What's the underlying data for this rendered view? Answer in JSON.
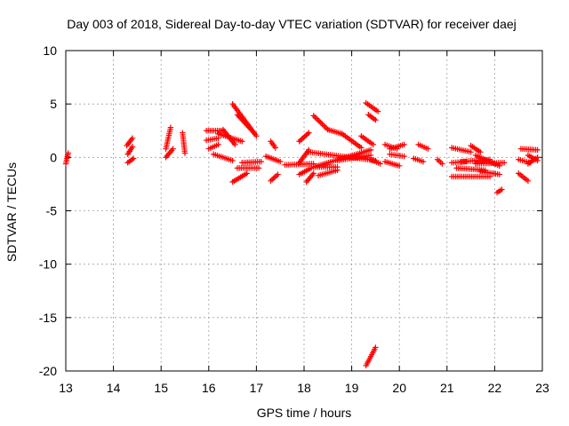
{
  "chart_data": {
    "type": "scatter",
    "title": "Day 003 of 2018, Sidereal Day-to-day VTEC variation (SDTVAR) for receiver daej",
    "xlabel": "GPS time / hours",
    "ylabel": "SDTVAR / TECUs",
    "xlim": [
      13,
      23
    ],
    "ylim": [
      -20,
      10
    ],
    "xticks": [
      13,
      14,
      15,
      16,
      17,
      18,
      19,
      20,
      21,
      22,
      23
    ],
    "yticks": [
      -20,
      -15,
      -10,
      -5,
      0,
      5,
      10
    ],
    "grid": true,
    "marker": "+",
    "color": "#ff0000",
    "segments": [
      [
        [
          13.0,
          -0.6
        ],
        [
          13.05,
          0.4
        ]
      ],
      [
        [
          14.28,
          1.1
        ],
        [
          14.4,
          1.8
        ]
      ],
      [
        [
          14.3,
          0.3
        ],
        [
          14.4,
          1.0
        ]
      ],
      [
        [
          14.3,
          -0.5
        ],
        [
          14.42,
          -0.1
        ]
      ],
      [
        [
          15.1,
          0.8
        ],
        [
          15.2,
          2.8
        ]
      ],
      [
        [
          15.1,
          0.0
        ],
        [
          15.25,
          0.8
        ]
      ],
      [
        [
          15.45,
          2.3
        ],
        [
          15.5,
          0.4
        ]
      ],
      [
        [
          15.95,
          2.5
        ],
        [
          16.3,
          2.5
        ]
      ],
      [
        [
          15.95,
          1.6
        ],
        [
          16.2,
          1.8
        ]
      ],
      [
        [
          16.0,
          0.8
        ],
        [
          16.2,
          1.2
        ]
      ],
      [
        [
          16.1,
          0.3
        ],
        [
          16.5,
          -0.3
        ]
      ],
      [
        [
          16.2,
          2.2
        ],
        [
          16.7,
          1.5
        ]
      ],
      [
        [
          16.3,
          2.6
        ],
        [
          16.55,
          1.2
        ]
      ],
      [
        [
          16.5,
          5.0
        ],
        [
          17.0,
          2.0
        ]
      ],
      [
        [
          16.6,
          4.0
        ],
        [
          16.95,
          2.3
        ]
      ],
      [
        [
          16.5,
          -2.3
        ],
        [
          16.8,
          -1.5
        ]
      ],
      [
        [
          16.6,
          -1.0
        ],
        [
          17.05,
          -1.0
        ]
      ],
      [
        [
          16.7,
          -0.5
        ],
        [
          17.1,
          -0.4
        ]
      ],
      [
        [
          17.2,
          0.1
        ],
        [
          17.5,
          -0.4
        ]
      ],
      [
        [
          17.3,
          1.5
        ],
        [
          17.4,
          0.9
        ]
      ],
      [
        [
          17.3,
          -2.2
        ],
        [
          17.45,
          -1.6
        ]
      ],
      [
        [
          17.6,
          -0.7
        ],
        [
          18.2,
          -0.6
        ]
      ],
      [
        [
          17.9,
          1.5
        ],
        [
          18.1,
          2.3
        ]
      ],
      [
        [
          17.9,
          -0.5
        ],
        [
          18.1,
          0.7
        ]
      ],
      [
        [
          17.9,
          -1.6
        ],
        [
          18.15,
          -1.0
        ]
      ],
      [
        [
          18.05,
          -2.3
        ],
        [
          18.2,
          -1.5
        ]
      ],
      [
        [
          18.1,
          0.5
        ],
        [
          19.5,
          -0.3
        ]
      ],
      [
        [
          18.2,
          -0.9
        ],
        [
          19.4,
          0.7
        ]
      ],
      [
        [
          18.2,
          -0.9
        ],
        [
          18.7,
          -0.9
        ]
      ],
      [
        [
          18.2,
          3.9
        ],
        [
          18.5,
          2.6
        ]
      ],
      [
        [
          18.5,
          2.6
        ],
        [
          18.8,
          2.2
        ]
      ],
      [
        [
          18.8,
          2.2
        ],
        [
          19.2,
          0.9
        ]
      ],
      [
        [
          18.3,
          -1.7
        ],
        [
          18.7,
          -1.2
        ]
      ],
      [
        [
          18.7,
          -0.3
        ],
        [
          19.4,
          0.2
        ]
      ],
      [
        [
          19.3,
          5.1
        ],
        [
          19.55,
          4.3
        ]
      ],
      [
        [
          19.35,
          4.0
        ],
        [
          19.5,
          3.5
        ]
      ],
      [
        [
          19.2,
          2.0
        ],
        [
          19.45,
          1.2
        ]
      ],
      [
        [
          19.4,
          -0.2
        ],
        [
          19.6,
          -0.6
        ]
      ],
      [
        [
          19.3,
          -19.5
        ],
        [
          19.5,
          -17.8
        ]
      ],
      [
        [
          19.7,
          1.2
        ],
        [
          19.95,
          0.8
        ]
      ],
      [
        [
          19.8,
          0.8
        ],
        [
          20.1,
          1.2
        ]
      ],
      [
        [
          19.7,
          -0.4
        ],
        [
          20.0,
          -0.8
        ]
      ],
      [
        [
          19.8,
          0.3
        ],
        [
          20.1,
          0.1
        ]
      ],
      [
        [
          20.3,
          -0.1
        ],
        [
          20.5,
          -0.4
        ]
      ],
      [
        [
          20.4,
          1.2
        ],
        [
          20.6,
          0.8
        ]
      ],
      [
        [
          20.8,
          -0.2
        ],
        [
          20.9,
          -0.6
        ]
      ],
      [
        [
          21.1,
          -0.5
        ],
        [
          21.4,
          -0.4
        ]
      ],
      [
        [
          21.1,
          0.9
        ],
        [
          21.5,
          0.5
        ]
      ],
      [
        [
          21.1,
          -1.8
        ],
        [
          21.9,
          -1.8
        ]
      ],
      [
        [
          21.2,
          -1.0
        ],
        [
          21.8,
          -1.2
        ]
      ],
      [
        [
          21.3,
          -0.4
        ],
        [
          21.9,
          -0.2
        ]
      ],
      [
        [
          21.5,
          1.1
        ],
        [
          21.7,
          0.5
        ]
      ],
      [
        [
          21.6,
          -0.6
        ],
        [
          22.2,
          -0.5
        ]
      ],
      [
        [
          21.6,
          0.2
        ],
        [
          22.1,
          -0.8
        ]
      ],
      [
        [
          21.7,
          -1.3
        ],
        [
          22.1,
          -1.6
        ]
      ],
      [
        [
          22.05,
          -3.3
        ],
        [
          22.15,
          -3.0
        ]
      ],
      [
        [
          22.55,
          0.8
        ],
        [
          22.9,
          0.7
        ]
      ],
      [
        [
          22.5,
          -0.2
        ],
        [
          22.75,
          -0.5
        ]
      ],
      [
        [
          22.7,
          0.2
        ],
        [
          22.9,
          -0.3
        ]
      ],
      [
        [
          22.5,
          -1.5
        ],
        [
          22.7,
          -2.2
        ]
      ],
      [
        [
          22.7,
          -0.6
        ],
        [
          22.9,
          0.0
        ]
      ]
    ]
  }
}
